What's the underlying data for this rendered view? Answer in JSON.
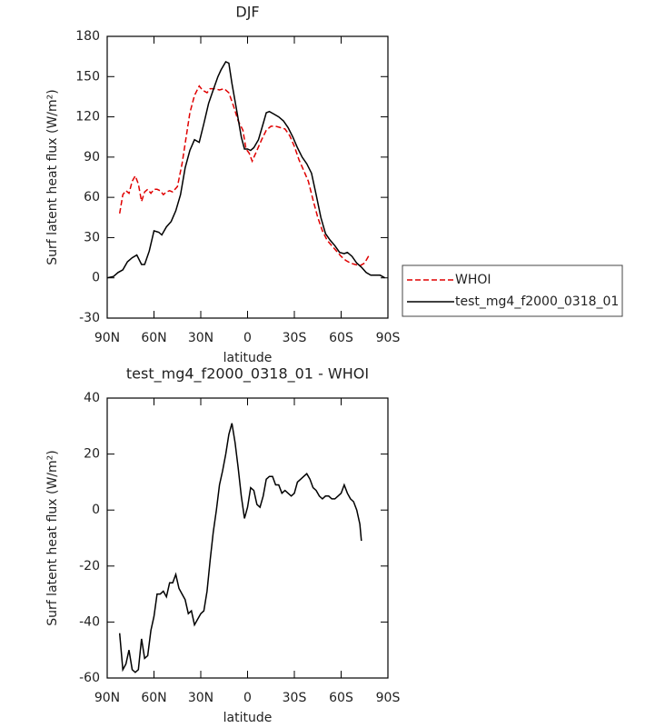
{
  "chart_data": [
    {
      "type": "line",
      "title": "DJF",
      "xlabel": "latitude",
      "ylabel": "Surf latent heat flux (W/m²)",
      "xlim": [
        90,
        -90
      ],
      "ylim": [
        -30,
        180
      ],
      "xticks": [
        {
          "value": 90,
          "label": "90N"
        },
        {
          "value": 60,
          "label": "60N"
        },
        {
          "value": 30,
          "label": "30N"
        },
        0,
        {
          "value": -30,
          "label": "30S"
        },
        {
          "value": -60,
          "label": "60S"
        },
        {
          "value": -90,
          "label": "90S"
        }
      ],
      "yticks": [
        -30,
        0,
        30,
        60,
        90,
        120,
        150,
        180
      ],
      "legend": "right",
      "series": [
        {
          "name": "WHOI",
          "color": "#e00000",
          "dash": true,
          "x": [
            82,
            80,
            78,
            76,
            74,
            72,
            70,
            68,
            66,
            64,
            62,
            60,
            58,
            56,
            54,
            52,
            50,
            48,
            45,
            42,
            40,
            37,
            34,
            31,
            29,
            26,
            24,
            21,
            18,
            15,
            12,
            9,
            6,
            3,
            1,
            -1,
            -3,
            -6,
            -9,
            -12,
            -15,
            -18,
            -21,
            -24,
            -27,
            -30,
            -33,
            -36,
            -39,
            -42,
            -45,
            -48,
            -51,
            -54,
            -57,
            -60,
            -63,
            -66,
            -69,
            -72,
            -75,
            -78
          ],
          "values": [
            48,
            62,
            65,
            63,
            72,
            76,
            70,
            57,
            64,
            66,
            63,
            66,
            66,
            65,
            62,
            64,
            65,
            64,
            68,
            85,
            100,
            123,
            136,
            143,
            140,
            138,
            141,
            141,
            140,
            141,
            138,
            128,
            117,
            110,
            96,
            93,
            87,
            95,
            103,
            110,
            113,
            113,
            112,
            111,
            106,
            98,
            88,
            80,
            72,
            58,
            45,
            35,
            28,
            24,
            20,
            16,
            13,
            11,
            10,
            9,
            11,
            17
          ]
        },
        {
          "name": "test_mg4_f2000_0318_01",
          "color": "#000000",
          "dash": false,
          "x": [
            90,
            86,
            83,
            80,
            77,
            74,
            71,
            68,
            66,
            63,
            60,
            57,
            55,
            52,
            49,
            46,
            43,
            40,
            37,
            34,
            31,
            28,
            25,
            22,
            19,
            17,
            14,
            12,
            10,
            7,
            4,
            2,
            0,
            -2,
            -4,
            -7,
            -10,
            -12,
            -14,
            -17,
            -20,
            -23,
            -26,
            -29,
            -32,
            -35,
            -38,
            -41,
            -44,
            -47,
            -50,
            -53,
            -56,
            -59,
            -62,
            -64,
            -67,
            -70,
            -73,
            -76,
            -79,
            -82,
            -85,
            -88
          ],
          "values": [
            0,
            1,
            4,
            6,
            12,
            15,
            17,
            10,
            10,
            20,
            35,
            34,
            32,
            38,
            42,
            50,
            62,
            82,
            95,
            103,
            101,
            115,
            130,
            140,
            150,
            155,
            161,
            160,
            145,
            125,
            105,
            96,
            96,
            95,
            97,
            103,
            115,
            123,
            124,
            122,
            120,
            117,
            112,
            105,
            97,
            90,
            85,
            78,
            62,
            45,
            33,
            28,
            24,
            19,
            18,
            19,
            16,
            11,
            8,
            4,
            2,
            2,
            2,
            0
          ]
        }
      ]
    },
    {
      "type": "line",
      "title": "test_mg4_f2000_0318_01 - WHOI",
      "xlabel": "latitude",
      "ylabel": "Surf latent heat flux (W/m²)",
      "xlim": [
        90,
        -90
      ],
      "ylim": [
        -60,
        40
      ],
      "xticks": [
        {
          "value": 90,
          "label": "90N"
        },
        {
          "value": 60,
          "label": "60N"
        },
        {
          "value": 30,
          "label": "30N"
        },
        0,
        {
          "value": -30,
          "label": "30S"
        },
        {
          "value": -60,
          "label": "60S"
        },
        {
          "value": -90,
          "label": "90S"
        }
      ],
      "yticks": [
        -60,
        -40,
        -20,
        0,
        20,
        40
      ],
      "series": [
        {
          "color": "#000000",
          "dash": false,
          "x": [
            82,
            80,
            78,
            76,
            74,
            72,
            70,
            68,
            66,
            64,
            62,
            60,
            58,
            56,
            54,
            52,
            50,
            48,
            46,
            44,
            42,
            40,
            38,
            36,
            34,
            32,
            30,
            28,
            26,
            24,
            22,
            20,
            18,
            16,
            14,
            12,
            10,
            8,
            6,
            4,
            2,
            0,
            -2,
            -4,
            -6,
            -8,
            -10,
            -12,
            -14,
            -16,
            -18,
            -20,
            -22,
            -24,
            -26,
            -28,
            -30,
            -32,
            -34,
            -36,
            -38,
            -40,
            -42,
            -44,
            -46,
            -48,
            -50,
            -52,
            -54,
            -56,
            -58,
            -60,
            -62,
            -64,
            -66,
            -68,
            -70,
            -72,
            -73
          ],
          "values": [
            -44,
            -57,
            -55,
            -50,
            -57,
            -58,
            -57,
            -46,
            -53,
            -52,
            -43,
            -38,
            -30,
            -30,
            -29,
            -31,
            -26,
            -26,
            -23,
            -28,
            -30,
            -32,
            -37,
            -36,
            -41,
            -39,
            -37,
            -36,
            -29,
            -18,
            -8,
            0,
            9,
            14,
            20,
            27,
            31,
            24,
            15,
            5,
            -3,
            1,
            8,
            7,
            2,
            1,
            5,
            11,
            12,
            12,
            9,
            9,
            6,
            7,
            6,
            5,
            6,
            10,
            11,
            12,
            13,
            11,
            8,
            7,
            5,
            4,
            5,
            5,
            4,
            4,
            5,
            6,
            9,
            6,
            4,
            3,
            0,
            -5,
            -11
          ]
        }
      ]
    }
  ]
}
